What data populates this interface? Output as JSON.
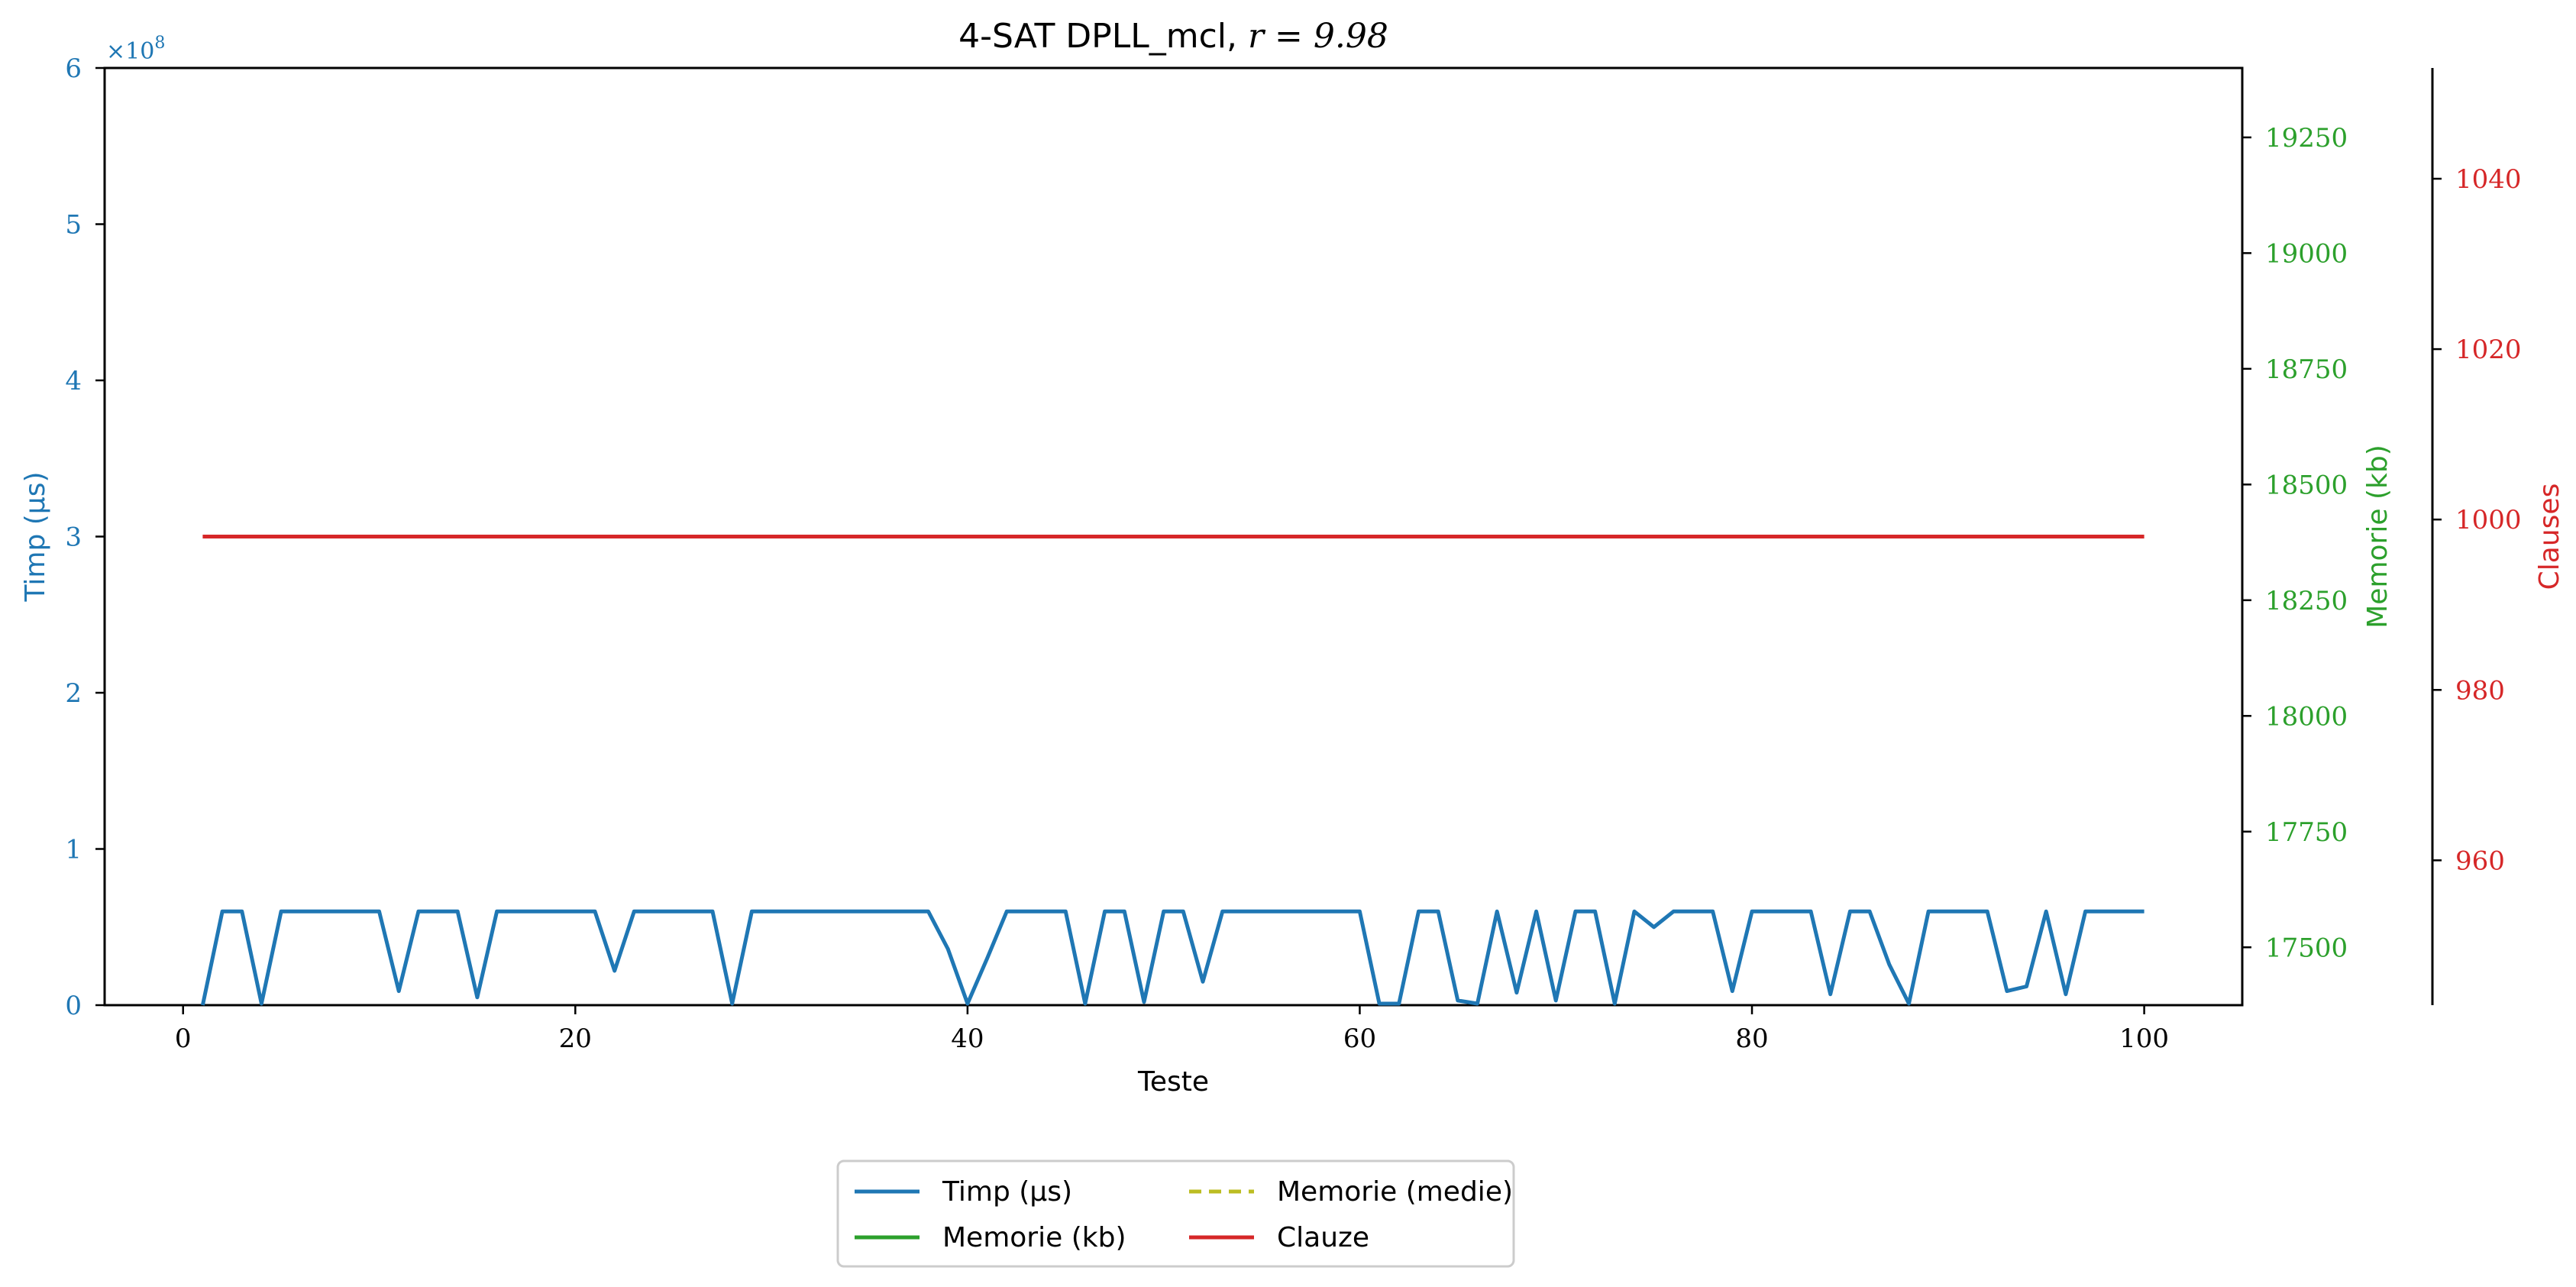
{
  "chart_data": {
    "type": "line",
    "title_text": "4-SAT DPLL_mcl, ",
    "title_math": "r = 9.98",
    "xlabel": "Teste",
    "xlim": [
      -4,
      105
    ],
    "xticks": [
      0,
      20,
      40,
      60,
      80,
      100
    ],
    "axes": {
      "left": {
        "label": "Timp (μs)",
        "color": "#1f77b4",
        "ylim": [
          0,
          6
        ],
        "ticks": [
          0,
          1,
          2,
          3,
          4,
          5,
          6
        ],
        "multiplier": "×10",
        "multiplier_exp": "8"
      },
      "right": {
        "label": "Memorie (kb)",
        "color": "#2ca02c",
        "ylim": [
          17375,
          19400
        ],
        "ticks": [
          17500,
          17750,
          18000,
          18250,
          18500,
          18750,
          19000,
          19250
        ]
      },
      "far_right": {
        "label": "Clauses",
        "color": "#d62728",
        "ylim": [
          943,
          1053
        ],
        "ticks": [
          960,
          980,
          1000,
          1020,
          1040
        ]
      }
    },
    "series": [
      {
        "name": "Timp (μs)",
        "axis": "left",
        "color": "#1f77b4",
        "dash": "solid",
        "x": [
          1,
          2,
          3,
          4,
          5,
          6,
          7,
          8,
          9,
          10,
          11,
          12,
          13,
          14,
          15,
          16,
          17,
          18,
          19,
          20,
          21,
          22,
          23,
          24,
          25,
          26,
          27,
          28,
          29,
          30,
          31,
          32,
          33,
          34,
          35,
          36,
          37,
          38,
          39,
          40,
          41,
          42,
          43,
          44,
          45,
          46,
          47,
          48,
          49,
          50,
          51,
          52,
          53,
          54,
          55,
          56,
          57,
          58,
          59,
          60,
          61,
          62,
          63,
          64,
          65,
          66,
          67,
          68,
          69,
          70,
          71,
          72,
          73,
          74,
          75,
          76,
          77,
          78,
          79,
          80,
          81,
          82,
          83,
          84,
          85,
          86,
          87,
          88,
          89,
          90,
          91,
          92,
          93,
          94,
          95,
          96,
          97,
          98,
          99,
          100
        ],
        "y": [
          0,
          0.6,
          0.6,
          0.01,
          0.6,
          0.6,
          0.6,
          0.6,
          0.6,
          0.6,
          0.09,
          0.6,
          0.6,
          0.6,
          0.05,
          0.6,
          0.6,
          0.6,
          0.6,
          0.6,
          0.6,
          0.22,
          0.6,
          0.6,
          0.6,
          0.6,
          0.6,
          0.01,
          0.6,
          0.6,
          0.6,
          0.6,
          0.6,
          0.6,
          0.6,
          0.6,
          0.6,
          0.6,
          0.36,
          0.01,
          0.3,
          0.6,
          0.6,
          0.6,
          0.6,
          0.01,
          0.6,
          0.6,
          0.02,
          0.6,
          0.6,
          0.15,
          0.6,
          0.6,
          0.6,
          0.6,
          0.6,
          0.6,
          0.6,
          0.6,
          0.01,
          0.01,
          0.6,
          0.6,
          0.03,
          0.01,
          0.6,
          0.08,
          0.6,
          0.03,
          0.6,
          0.6,
          0.01,
          0.6,
          0.5,
          0.6,
          0.6,
          0.6,
          0.09,
          0.6,
          0.6,
          0.6,
          0.6,
          0.07,
          0.6,
          0.6,
          0.26,
          0.01,
          0.6,
          0.6,
          0.6,
          0.6,
          0.09,
          0.12,
          0.6,
          0.07,
          0.6,
          0.6,
          0.6,
          0.6
        ]
      },
      {
        "name": "Clauze",
        "axis": "far_right",
        "color": "#d62728",
        "dash": "solid",
        "x": [
          1,
          100
        ],
        "y": [
          998,
          998
        ]
      }
    ],
    "legend": {
      "position": "bottom-center",
      "entries": [
        {
          "label": "Timp (μs)",
          "color": "#1f77b4",
          "dash": "solid"
        },
        {
          "label": "Memorie (kb)",
          "color": "#2ca02c",
          "dash": "solid"
        },
        {
          "label": "Memorie (medie)",
          "color": "#bcbd22",
          "dash": "dashed"
        },
        {
          "label": "Clauze",
          "color": "#d62728",
          "dash": "solid"
        }
      ]
    },
    "grid": false
  }
}
